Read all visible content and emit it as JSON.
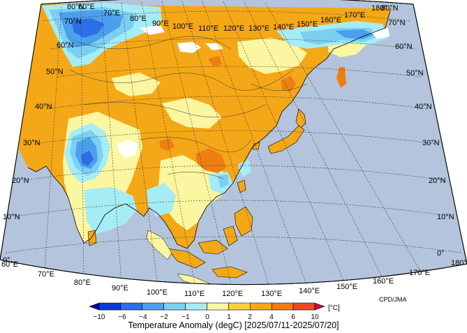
{
  "map": {
    "lon_labels_top": [
      "60°E",
      "70°E",
      "80°E",
      "90°E",
      "100°E",
      "110°E",
      "120°E",
      "130°E",
      "140°E",
      "150°E",
      "160°E",
      "170°E",
      "180°"
    ],
    "lon_labels_bottom": [
      "60°E",
      "70°E",
      "80°E",
      "90°E",
      "100°E",
      "110°E",
      "120°E",
      "130°E",
      "140°E",
      "150°E",
      "160°E",
      "170°E",
      "180°"
    ],
    "lat_labels": [
      "0°",
      "10°N",
      "20°N",
      "30°N",
      "40°N",
      "50°N",
      "60°N",
      "70°N",
      "80°N"
    ],
    "colors": {
      "ocean": "#b4c4dc",
      "graticule": "#333333"
    }
  },
  "legend": {
    "title": "Temperature Anomaly (degC) [2025/07/11-2025/07/20]",
    "unit": "[°C]",
    "ticks": [
      "−10",
      "−6",
      "−4",
      "−2",
      "−1",
      "0",
      "1",
      "2",
      "4",
      "6",
      "10"
    ],
    "bins": [
      {
        "range": "<-10",
        "color": "#0000a0"
      },
      {
        "range": "-10 to -6",
        "color": "#0a3cd2"
      },
      {
        "range": "-6 to -4",
        "color": "#2c6fe6"
      },
      {
        "range": "-4 to -2",
        "color": "#4c9fee"
      },
      {
        "range": "-2 to -1",
        "color": "#7bd0f2"
      },
      {
        "range": "-1 to 0",
        "color": "#a6ecf4"
      },
      {
        "range": "0 to 1",
        "color": "#fbf6a0"
      },
      {
        "range": "1 to 2",
        "color": "#f8d23c"
      },
      {
        "range": "2 to 4",
        "color": "#f4a817"
      },
      {
        "range": "4 to 6",
        "color": "#ee7e14"
      },
      {
        "range": "6 to 10",
        "color": "#ea4a29"
      },
      {
        "range": ">10",
        "color": "#c8102e"
      }
    ]
  },
  "credit": "CPD/JMA"
}
